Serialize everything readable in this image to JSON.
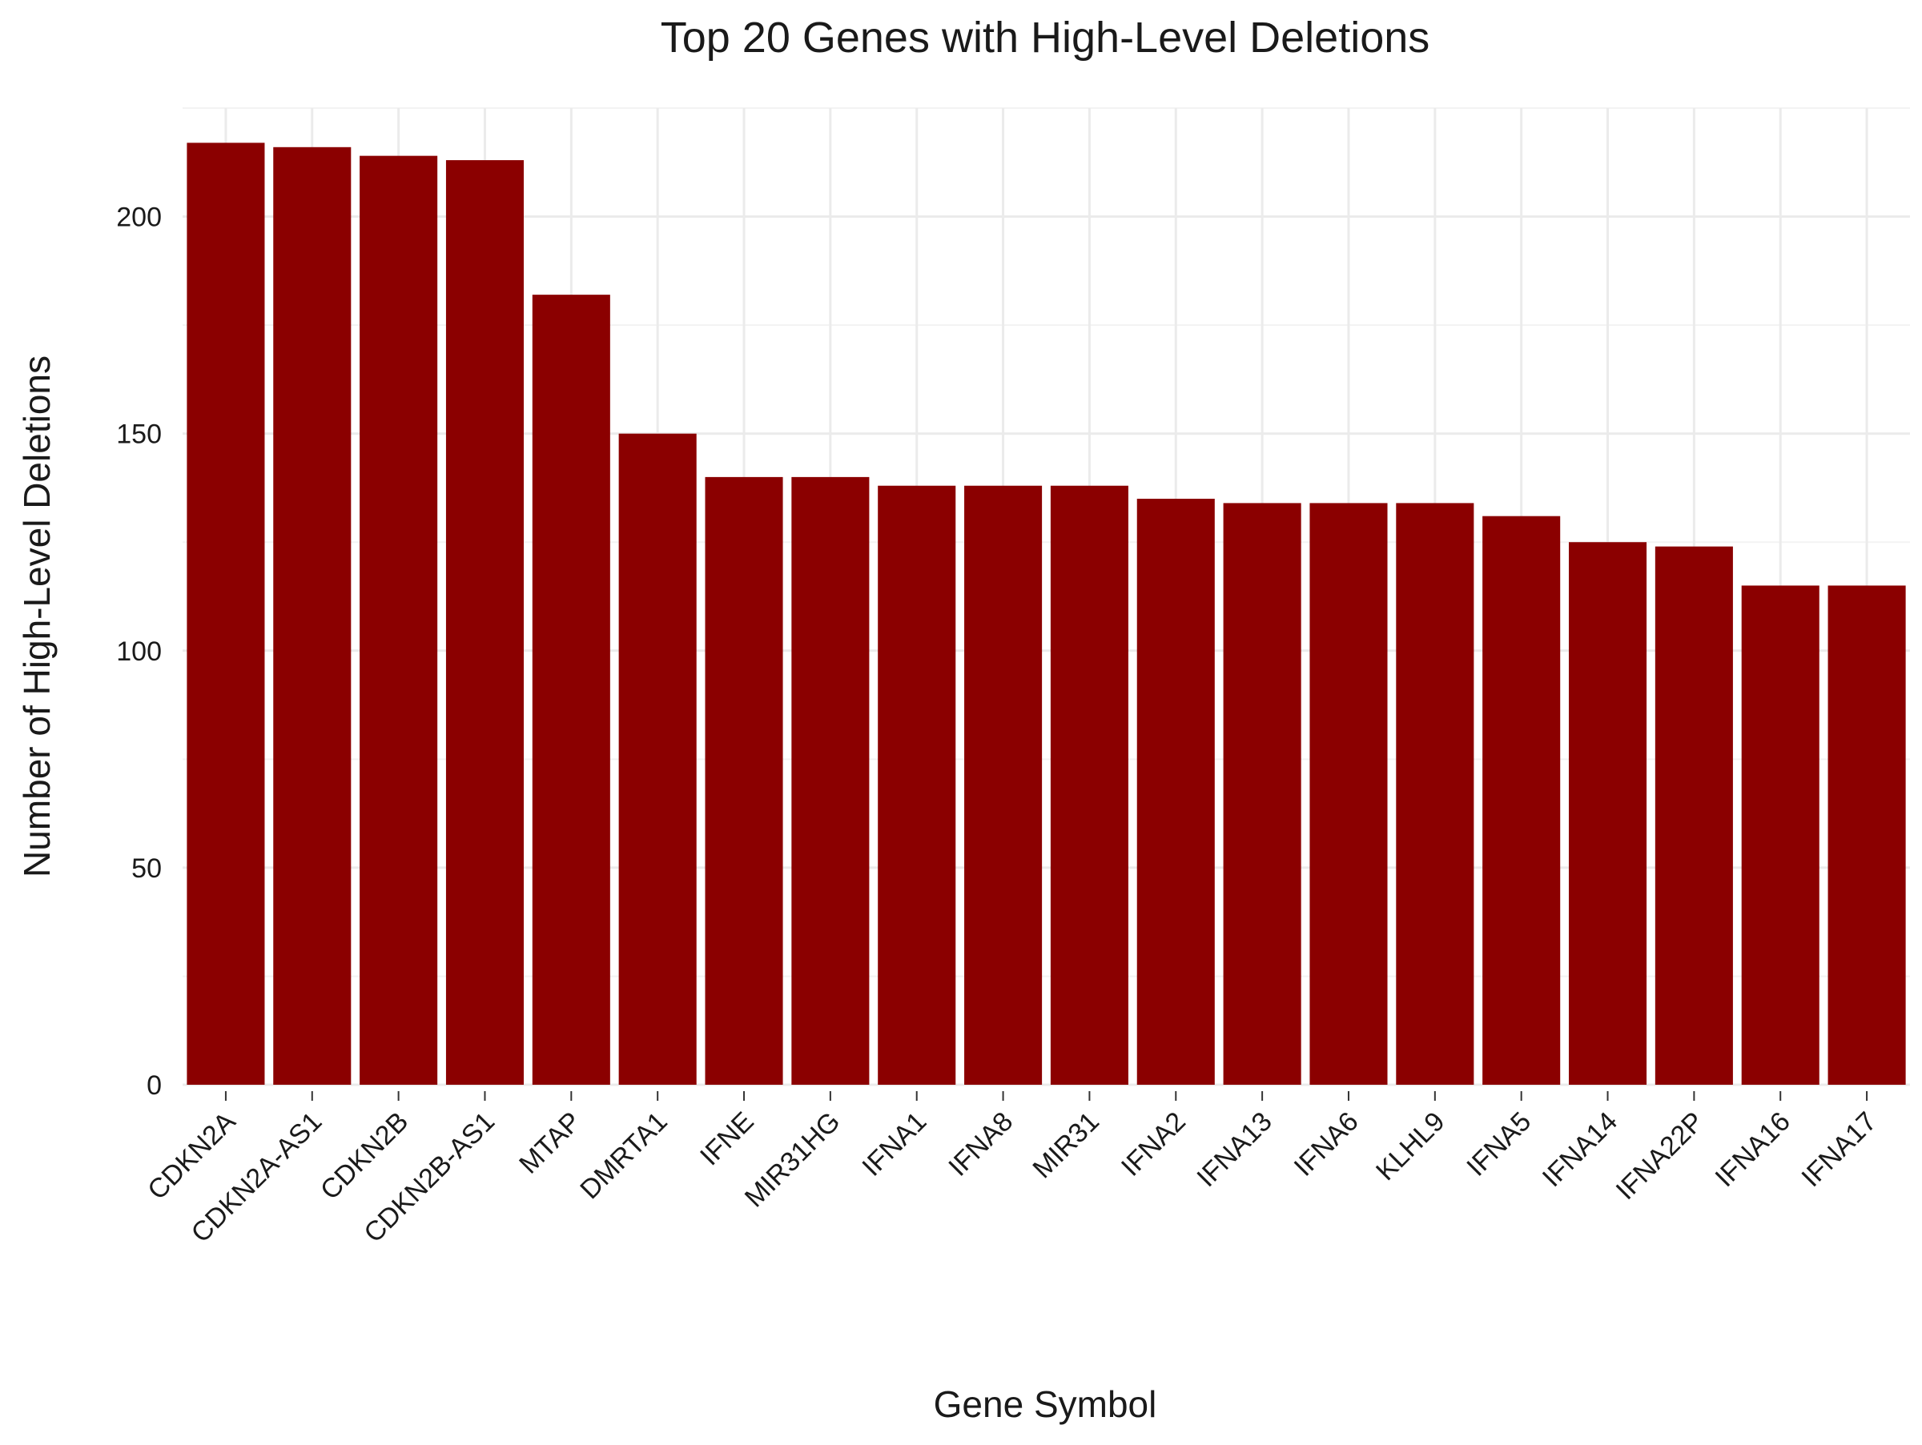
{
  "chart_data": {
    "type": "bar",
    "title": "Top 20 Genes with High-Level Deletions",
    "xlabel": "Gene Symbol",
    "ylabel": "Number of High-Level Deletions",
    "ylim": [
      0,
      225
    ],
    "yticks": [
      "0",
      "50",
      "100",
      "150",
      "200"
    ],
    "grid": true,
    "bar_color": "#8B0000",
    "categories": [
      "CDKN2A",
      "CDKN2A-AS1",
      "CDKN2B",
      "CDKN2B-AS1",
      "MTAP",
      "DMRTA1",
      "IFNE",
      "MIR31HG",
      "IFNA1",
      "IFNA8",
      "MIR31",
      "IFNA2",
      "IFNA13",
      "IFNA6",
      "KLHL9",
      "IFNA5",
      "IFNA14",
      "IFNA22P",
      "IFNA16",
      "IFNA17"
    ],
    "values": [
      217,
      216,
      214,
      213,
      182,
      150,
      140,
      140,
      138,
      138,
      138,
      135,
      134,
      134,
      134,
      131,
      125,
      124,
      115,
      115
    ]
  }
}
